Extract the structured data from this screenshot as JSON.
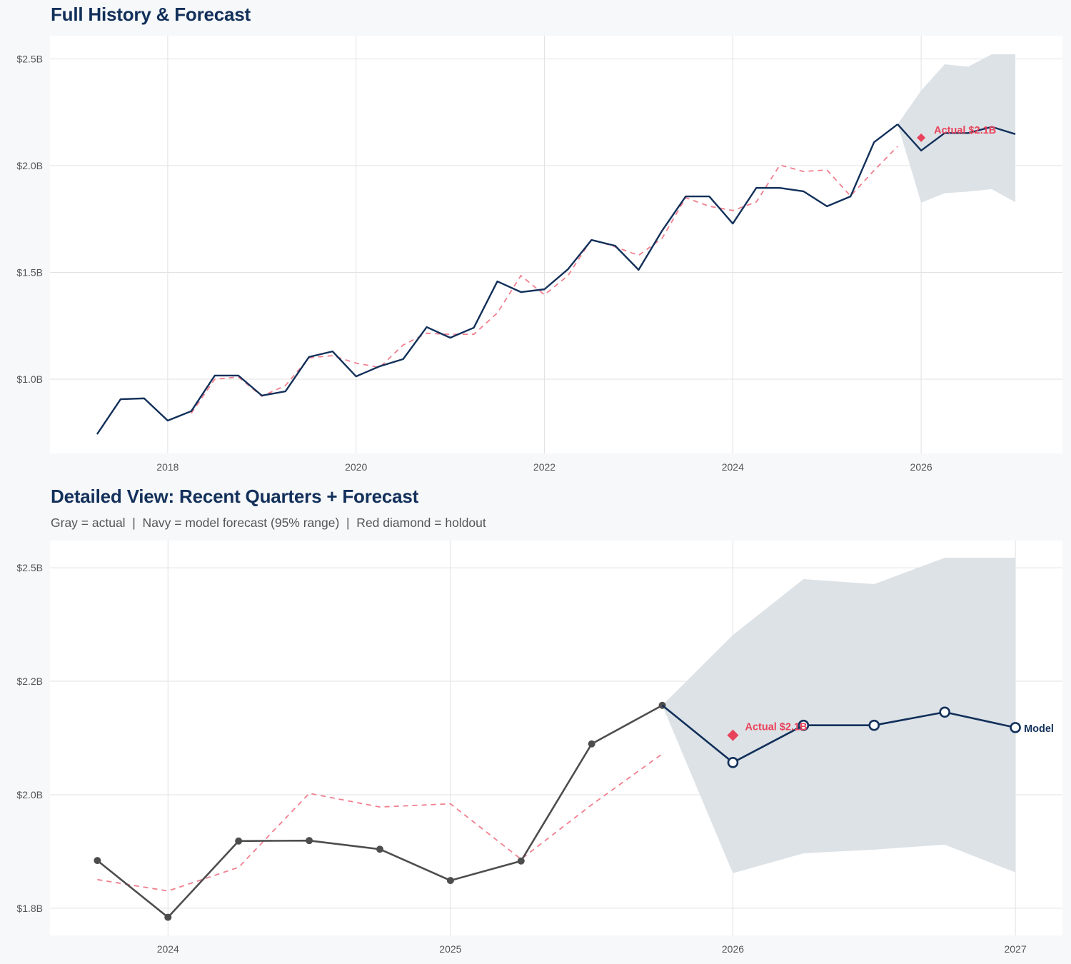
{
  "colors": {
    "navy": "#12305a",
    "gray_actual": "#4d4d4d",
    "red": "#e8435a",
    "fitted": "#f07f8f",
    "band": "#dbe0e6",
    "grid": "#e2e2e2",
    "background": "#f7f8fa",
    "panel": "#ffffff"
  },
  "chart_data": [
    {
      "type": "line",
      "title": "Full History & Forecast",
      "x_type": "date",
      "xlim": [
        "2016-10-01",
        "2027-07-01"
      ],
      "ylim": [
        0.652,
        2.609
      ],
      "y_unit": "$B",
      "grid": true,
      "x_ticks": [
        {
          "value": 2018,
          "label": "2018"
        },
        {
          "value": 2020,
          "label": "2020"
        },
        {
          "value": 2022,
          "label": "2022"
        },
        {
          "value": 2024,
          "label": "2024"
        },
        {
          "value": 2026,
          "label": "2026"
        }
      ],
      "y_ticks": [
        {
          "value": 1.0,
          "label": "$1.0B"
        },
        {
          "value": 1.5,
          "label": "$1.5B"
        },
        {
          "value": 2.0,
          "label": "$2.0B"
        },
        {
          "value": 2.5,
          "label": "$2.5B"
        }
      ],
      "history": {
        "x": [
          "2017-04-01",
          "2017-07-01",
          "2017-10-01",
          "2018-01-01",
          "2018-04-01",
          "2018-07-01",
          "2018-10-01",
          "2019-01-01",
          "2019-04-01",
          "2019-07-01",
          "2019-10-01",
          "2020-01-01",
          "2020-04-01",
          "2020-07-01",
          "2020-10-01",
          "2021-01-01",
          "2021-04-01",
          "2021-07-01",
          "2021-10-01",
          "2022-01-01",
          "2022-04-01",
          "2022-07-01",
          "2022-10-01",
          "2023-01-01",
          "2023-04-01",
          "2023-07-01",
          "2023-10-01",
          "2024-01-01",
          "2024-04-01",
          "2024-07-01",
          "2024-10-01",
          "2025-01-01",
          "2025-04-01",
          "2025-07-01",
          "2025-10-01"
        ],
        "y": [
          0.742,
          0.906,
          0.91,
          0.806,
          0.85,
          1.017,
          1.017,
          0.923,
          0.943,
          1.104,
          1.13,
          1.013,
          1.06,
          1.094,
          1.244,
          1.194,
          1.241,
          1.458,
          1.408,
          1.421,
          1.515,
          1.652,
          1.625,
          1.512,
          1.696,
          1.856,
          1.856,
          1.729,
          1.896,
          1.896,
          1.88,
          1.81,
          1.856,
          2.11,
          2.194
        ]
      },
      "fitted": {
        "x": [
          "2018-04-01",
          "2018-07-01",
          "2018-10-01",
          "2019-01-01",
          "2019-04-01",
          "2019-07-01",
          "2019-10-01",
          "2020-01-01",
          "2020-04-01",
          "2020-07-01",
          "2020-10-01",
          "2021-01-01",
          "2021-04-01",
          "2021-07-01",
          "2021-10-01",
          "2022-01-01",
          "2022-04-01",
          "2022-07-01",
          "2022-10-01",
          "2023-01-01",
          "2023-04-01",
          "2023-07-01",
          "2023-10-01",
          "2024-01-01",
          "2024-04-01",
          "2024-07-01",
          "2024-10-01",
          "2025-01-01",
          "2025-04-01",
          "2025-07-01",
          "2025-10-01"
        ],
        "y": [
          0.84,
          1.0,
          1.01,
          0.92,
          0.97,
          1.1,
          1.11,
          1.075,
          1.055,
          1.16,
          1.215,
          1.21,
          1.21,
          1.31,
          1.485,
          1.395,
          1.485,
          1.655,
          1.62,
          1.58,
          1.66,
          1.85,
          1.81,
          1.79,
          1.83,
          2.003,
          1.973,
          1.98,
          1.858,
          1.978,
          2.09
        ]
      },
      "forecast": {
        "x": [
          "2026-01-01",
          "2026-04-01",
          "2026-07-01",
          "2026-10-01",
          "2027-01-01"
        ],
        "y": [
          2.071,
          2.153,
          2.153,
          2.182,
          2.148
        ],
        "lower": [
          1.827,
          1.871,
          1.879,
          1.89,
          1.829
        ],
        "upper": [
          2.352,
          2.475,
          2.464,
          2.522,
          2.522
        ],
        "markers": false
      },
      "holdout": {
        "x": "2026-01-01",
        "y": 2.131,
        "label": "Actual $2.1B"
      }
    },
    {
      "type": "line",
      "title": "Detailed View: Recent Quarters + Forecast",
      "subtitle": "Gray = actual  |  Navy = model forecast (95% range)  |  Red diamond = holdout",
      "x_type": "date",
      "xlim": [
        "2023-07-31",
        "2027-03-01"
      ],
      "ylim": [
        1.69,
        2.56
      ],
      "y_unit": "$B",
      "grid": true,
      "x_ticks": [
        {
          "value": 2024,
          "label": "2024"
        },
        {
          "value": 2025,
          "label": "2025"
        },
        {
          "value": 2026,
          "label": "2026"
        },
        {
          "value": 2027,
          "label": "2027"
        }
      ],
      "y_ticks": [
        {
          "value": 1.75,
          "label": "$1.8B"
        },
        {
          "value": 2.0,
          "label": "$2.0B"
        },
        {
          "value": 2.25,
          "label": "$2.2B"
        },
        {
          "value": 2.5,
          "label": "$2.5B"
        }
      ],
      "history": {
        "x": [
          "2023-10-01",
          "2024-01-01",
          "2024-04-01",
          "2024-07-01",
          "2024-10-01",
          "2025-01-01",
          "2025-04-01",
          "2025-07-01",
          "2025-10-01"
        ],
        "y": [
          1.855,
          1.73,
          1.898,
          1.899,
          1.88,
          1.811,
          1.854,
          2.112,
          2.197
        ]
      },
      "fitted": {
        "x": [
          "2023-10-01",
          "2024-01-01",
          "2024-04-01",
          "2024-07-01",
          "2024-10-01",
          "2025-01-01",
          "2025-04-01",
          "2025-07-01",
          "2025-10-01"
        ],
        "y": [
          1.813,
          1.788,
          1.84,
          2.003,
          1.973,
          1.98,
          1.858,
          1.978,
          2.09
        ]
      },
      "forecast": {
        "x": [
          "2026-01-01",
          "2026-04-01",
          "2026-07-01",
          "2026-10-01",
          "2027-01-01"
        ],
        "y": [
          2.071,
          2.153,
          2.153,
          2.182,
          2.148
        ],
        "lower": [
          1.827,
          1.871,
          1.879,
          1.89,
          1.829
        ],
        "upper": [
          2.352,
          2.475,
          2.464,
          2.522,
          2.522
        ],
        "markers": true,
        "end_label": "Model"
      },
      "holdout": {
        "x": "2026-01-01",
        "y": 2.131,
        "label": "Actual $2.1B"
      }
    }
  ]
}
